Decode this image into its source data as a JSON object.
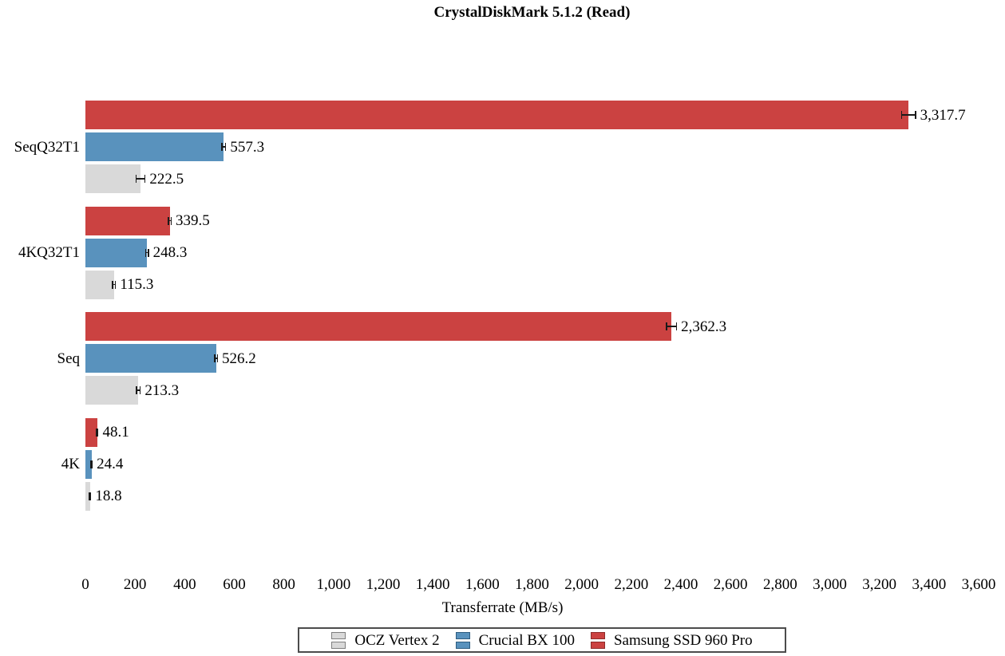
{
  "chart_data": {
    "type": "bar",
    "orientation": "horizontal",
    "title": "CrystalDiskMark 5.1.2 (Read)",
    "xlabel": "Transferrate (MB/s)",
    "xlim": [
      0,
      3600
    ],
    "xticks": [
      0,
      200,
      400,
      600,
      800,
      1000,
      1200,
      1400,
      1600,
      1800,
      2000,
      2200,
      2400,
      2600,
      2800,
      3000,
      3200,
      3400,
      3600
    ],
    "xtick_labels": [
      "0",
      "200",
      "400",
      "600",
      "800",
      "1,000",
      "1,200",
      "1,400",
      "1,600",
      "1,800",
      "2,000",
      "2,200",
      "2,400",
      "2,600",
      "2,800",
      "3,000",
      "3,200",
      "3,400",
      "3,600"
    ],
    "grid": false,
    "error_bars": true,
    "legend_position": "bottom",
    "categories": [
      "SeqQ32T1",
      "4KQ32T1",
      "Seq",
      "4K"
    ],
    "series": [
      {
        "name": "Samsung SSD 960 Pro",
        "color": "#cb4241",
        "border_color": "#8e2b2a",
        "values": [
          3317.7,
          339.5,
          2362.3,
          48.1
        ],
        "value_labels": [
          "3,317.7",
          "339.5",
          "2,362.3",
          "48.1"
        ],
        "errors": [
          30,
          8,
          22,
          5
        ]
      },
      {
        "name": "Crucial BX 100",
        "color": "#5992bd",
        "border_color": "#2e5d80",
        "values": [
          557.3,
          248.3,
          526.2,
          24.4
        ],
        "value_labels": [
          "557.3",
          "248.3",
          "526.2",
          "24.4"
        ],
        "errors": [
          10,
          8,
          8,
          4
        ]
      },
      {
        "name": "OCZ Vertex 2",
        "color": "#d9d9d9",
        "border_color": "#7f7f7f",
        "values": [
          222.5,
          115.3,
          213.3,
          18.8
        ],
        "value_labels": [
          "222.5",
          "115.3",
          "213.3",
          "18.8"
        ],
        "errors": [
          20,
          8,
          10,
          4
        ]
      }
    ],
    "legend_order": [
      "OCZ Vertex 2",
      "Crucial BX 100",
      "Samsung SSD 960 Pro"
    ]
  }
}
